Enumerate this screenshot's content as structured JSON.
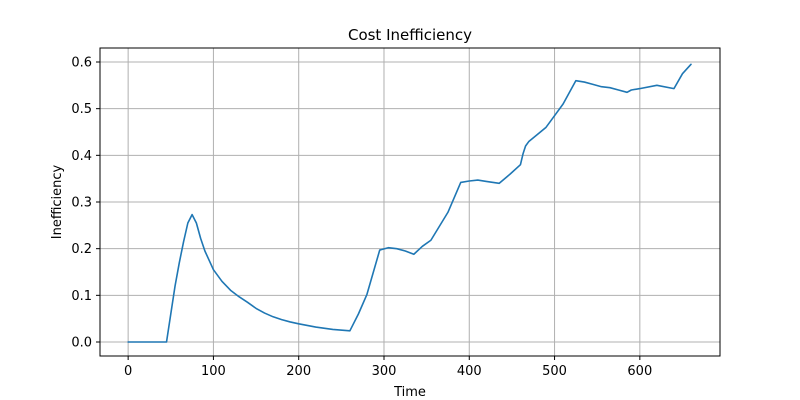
{
  "chart_data": {
    "type": "line",
    "title": "Cost Inefficiency",
    "xlabel": "Time",
    "ylabel": "Inefficiency",
    "xlim": [
      -33,
      694
    ],
    "ylim": [
      -0.03,
      0.63
    ],
    "xticks": [
      0,
      100,
      200,
      300,
      400,
      500,
      600
    ],
    "yticks": [
      0.0,
      0.1,
      0.2,
      0.3,
      0.4,
      0.5,
      0.6
    ],
    "xtick_labels": [
      "0",
      "100",
      "200",
      "300",
      "400",
      "500",
      "600"
    ],
    "ytick_labels": [
      "0.0",
      "0.1",
      "0.2",
      "0.3",
      "0.4",
      "0.5",
      "0.6"
    ],
    "grid": true,
    "line_color": "#1f77b4",
    "series": [
      {
        "x": [
          0,
          45,
          50,
          55,
          60,
          65,
          70,
          75,
          80,
          85,
          90,
          100,
          110,
          120,
          130,
          140,
          150,
          160,
          170,
          180,
          190,
          200,
          220,
          240,
          260,
          270,
          280,
          295,
          305,
          315,
          325,
          335,
          345,
          355,
          365,
          375,
          390,
          400,
          410,
          420,
          435,
          448,
          460,
          463,
          466,
          470,
          480,
          490,
          500,
          510,
          525,
          535,
          545,
          555,
          565,
          575,
          585,
          590,
          600,
          620,
          640,
          650,
          660
        ],
        "y": [
          0.0,
          0.0,
          0.06,
          0.12,
          0.17,
          0.215,
          0.255,
          0.273,
          0.255,
          0.222,
          0.195,
          0.155,
          0.13,
          0.111,
          0.097,
          0.085,
          0.072,
          0.062,
          0.054,
          0.048,
          0.043,
          0.039,
          0.032,
          0.027,
          0.024,
          0.06,
          0.102,
          0.197,
          0.202,
          0.2,
          0.195,
          0.188,
          0.205,
          0.218,
          0.248,
          0.278,
          0.342,
          0.345,
          0.347,
          0.344,
          0.34,
          0.36,
          0.38,
          0.403,
          0.42,
          0.43,
          0.445,
          0.46,
          0.485,
          0.51,
          0.56,
          0.557,
          0.552,
          0.547,
          0.545,
          0.54,
          0.535,
          0.54,
          0.543,
          0.55,
          0.543,
          0.575,
          0.595
        ]
      }
    ]
  }
}
